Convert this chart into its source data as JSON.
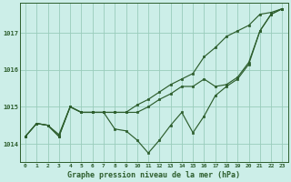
{
  "xlabel": "Graphe pression niveau de la mer (hPa)",
  "xlim": [
    -0.5,
    23.5
  ],
  "ylim": [
    1013.5,
    1017.8
  ],
  "yticks": [
    1014,
    1015,
    1016,
    1017
  ],
  "xticks": [
    0,
    1,
    2,
    3,
    4,
    5,
    6,
    7,
    8,
    9,
    10,
    11,
    12,
    13,
    14,
    15,
    16,
    17,
    18,
    19,
    20,
    21,
    22,
    23
  ],
  "bg_color": "#cceee8",
  "grid_color": "#99ccbb",
  "line_color": "#2d5e2d",
  "line1_smooth": [
    1014.2,
    1014.55,
    1014.5,
    1014.2,
    1015.0,
    1014.85,
    1014.85,
    1014.85,
    1014.85,
    1014.85,
    1015.05,
    1015.2,
    1015.4,
    1015.6,
    1015.75,
    1015.9,
    1016.35,
    1016.6,
    1016.9,
    1017.05,
    1017.2,
    1017.5,
    1017.55,
    1017.65
  ],
  "line2_mid": [
    1014.2,
    1014.55,
    1014.5,
    1014.2,
    1015.0,
    1014.85,
    1014.85,
    1014.85,
    1014.85,
    1014.85,
    1014.85,
    1015.0,
    1015.2,
    1015.35,
    1015.55,
    1015.55,
    1015.75,
    1015.55,
    1015.6,
    1015.8,
    1016.2,
    1017.05,
    1017.5,
    1017.65
  ],
  "line3_jagged": [
    1014.2,
    1014.55,
    1014.5,
    1014.25,
    1015.0,
    1014.85,
    1014.85,
    1014.85,
    1014.4,
    1014.35,
    1014.1,
    1013.75,
    1014.1,
    1014.5,
    1014.85,
    1014.3,
    1014.75,
    1015.3,
    1015.55,
    1015.75,
    1016.15,
    1017.05,
    1017.5,
    1017.65
  ]
}
